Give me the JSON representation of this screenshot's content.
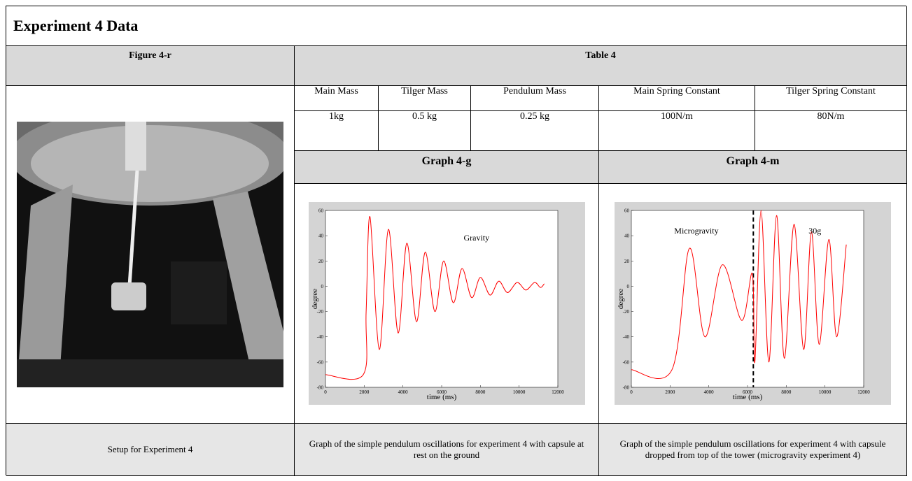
{
  "title": "Experiment 4 Data",
  "figure": {
    "header": "Figure 4-r",
    "caption": "Setup for Experiment 4"
  },
  "table": {
    "header": "Table 4",
    "columns": [
      "Main Mass",
      "Tilger Mass",
      "Pendulum Mass",
      "Main Spring Constant",
      "Tilger Spring Constant"
    ],
    "values": [
      "1kg",
      "0.5 kg",
      "0.25 kg",
      "100N/m",
      "80N/m"
    ]
  },
  "graphs": [
    {
      "header": "Graph 4-g",
      "caption": "Graph of the simple pendulum oscillations for experiment 4 with capsule at rest on the ground",
      "chart_data": {
        "type": "line",
        "x_label": "time (ms)",
        "y_label": "degree",
        "annotations": [
          "Gravity"
        ],
        "xlim": [
          0,
          12000
        ],
        "ylim": [
          -80,
          60
        ],
        "xticks": [
          0,
          2000,
          4000,
          6000,
          8000,
          10000,
          12000
        ],
        "yticks": [
          -80,
          -60,
          -40,
          -20,
          0,
          20,
          40,
          60
        ],
        "series": [
          {
            "color": "#ff0000",
            "x": [
              0,
              1950,
              2100,
              2300,
              2780,
              3250,
              3750,
              4200,
              4700,
              5150,
              5650,
              6100,
              6600,
              7050,
              7550,
              8000,
              8500,
              8950,
              9400,
              9900,
              10350,
              10800,
              11100,
              11300
            ],
            "values": [
              -70,
              -70,
              -20,
              55,
              -50,
              45,
              -37,
              34,
              -28,
              27,
              -20,
              20,
              -13,
              14,
              -9,
              7,
              -7,
              4,
              -5,
              3,
              -3,
              3,
              -1,
              2
            ]
          }
        ]
      }
    },
    {
      "header": "Graph 4-m",
      "caption": "Graph of the simple pendulum oscillations for experiment 4 with capsule dropped from top of the tower (microgravity experiment 4)",
      "chart_data": {
        "type": "line",
        "x_label": "time (ms)",
        "y_label": "degree",
        "annotations": [
          "Microgravity",
          "30g"
        ],
        "xlim": [
          0,
          12000
        ],
        "ylim": [
          -80,
          60
        ],
        "xticks": [
          0,
          2000,
          4000,
          6000,
          8000,
          10000,
          12000
        ],
        "yticks": [
          -80,
          -60,
          -40,
          -20,
          0,
          20,
          40,
          60
        ],
        "divider_x": 6300,
        "series": [
          {
            "color": "#ff0000",
            "x": [
              0,
              2100,
              3000,
              3800,
              4700,
              5700,
              6250,
              6380,
              6700,
              7100,
              7500,
              7900,
              8400,
              8900,
              9300,
              9700,
              10200,
              10600,
              11100
            ],
            "values": [
              -66,
              -66,
              30,
              -40,
              17,
              -27,
              10,
              -60,
              60,
              -60,
              56,
              -57,
              49,
              -50,
              43,
              -46,
              37,
              -40,
              33
            ]
          }
        ]
      }
    }
  ]
}
